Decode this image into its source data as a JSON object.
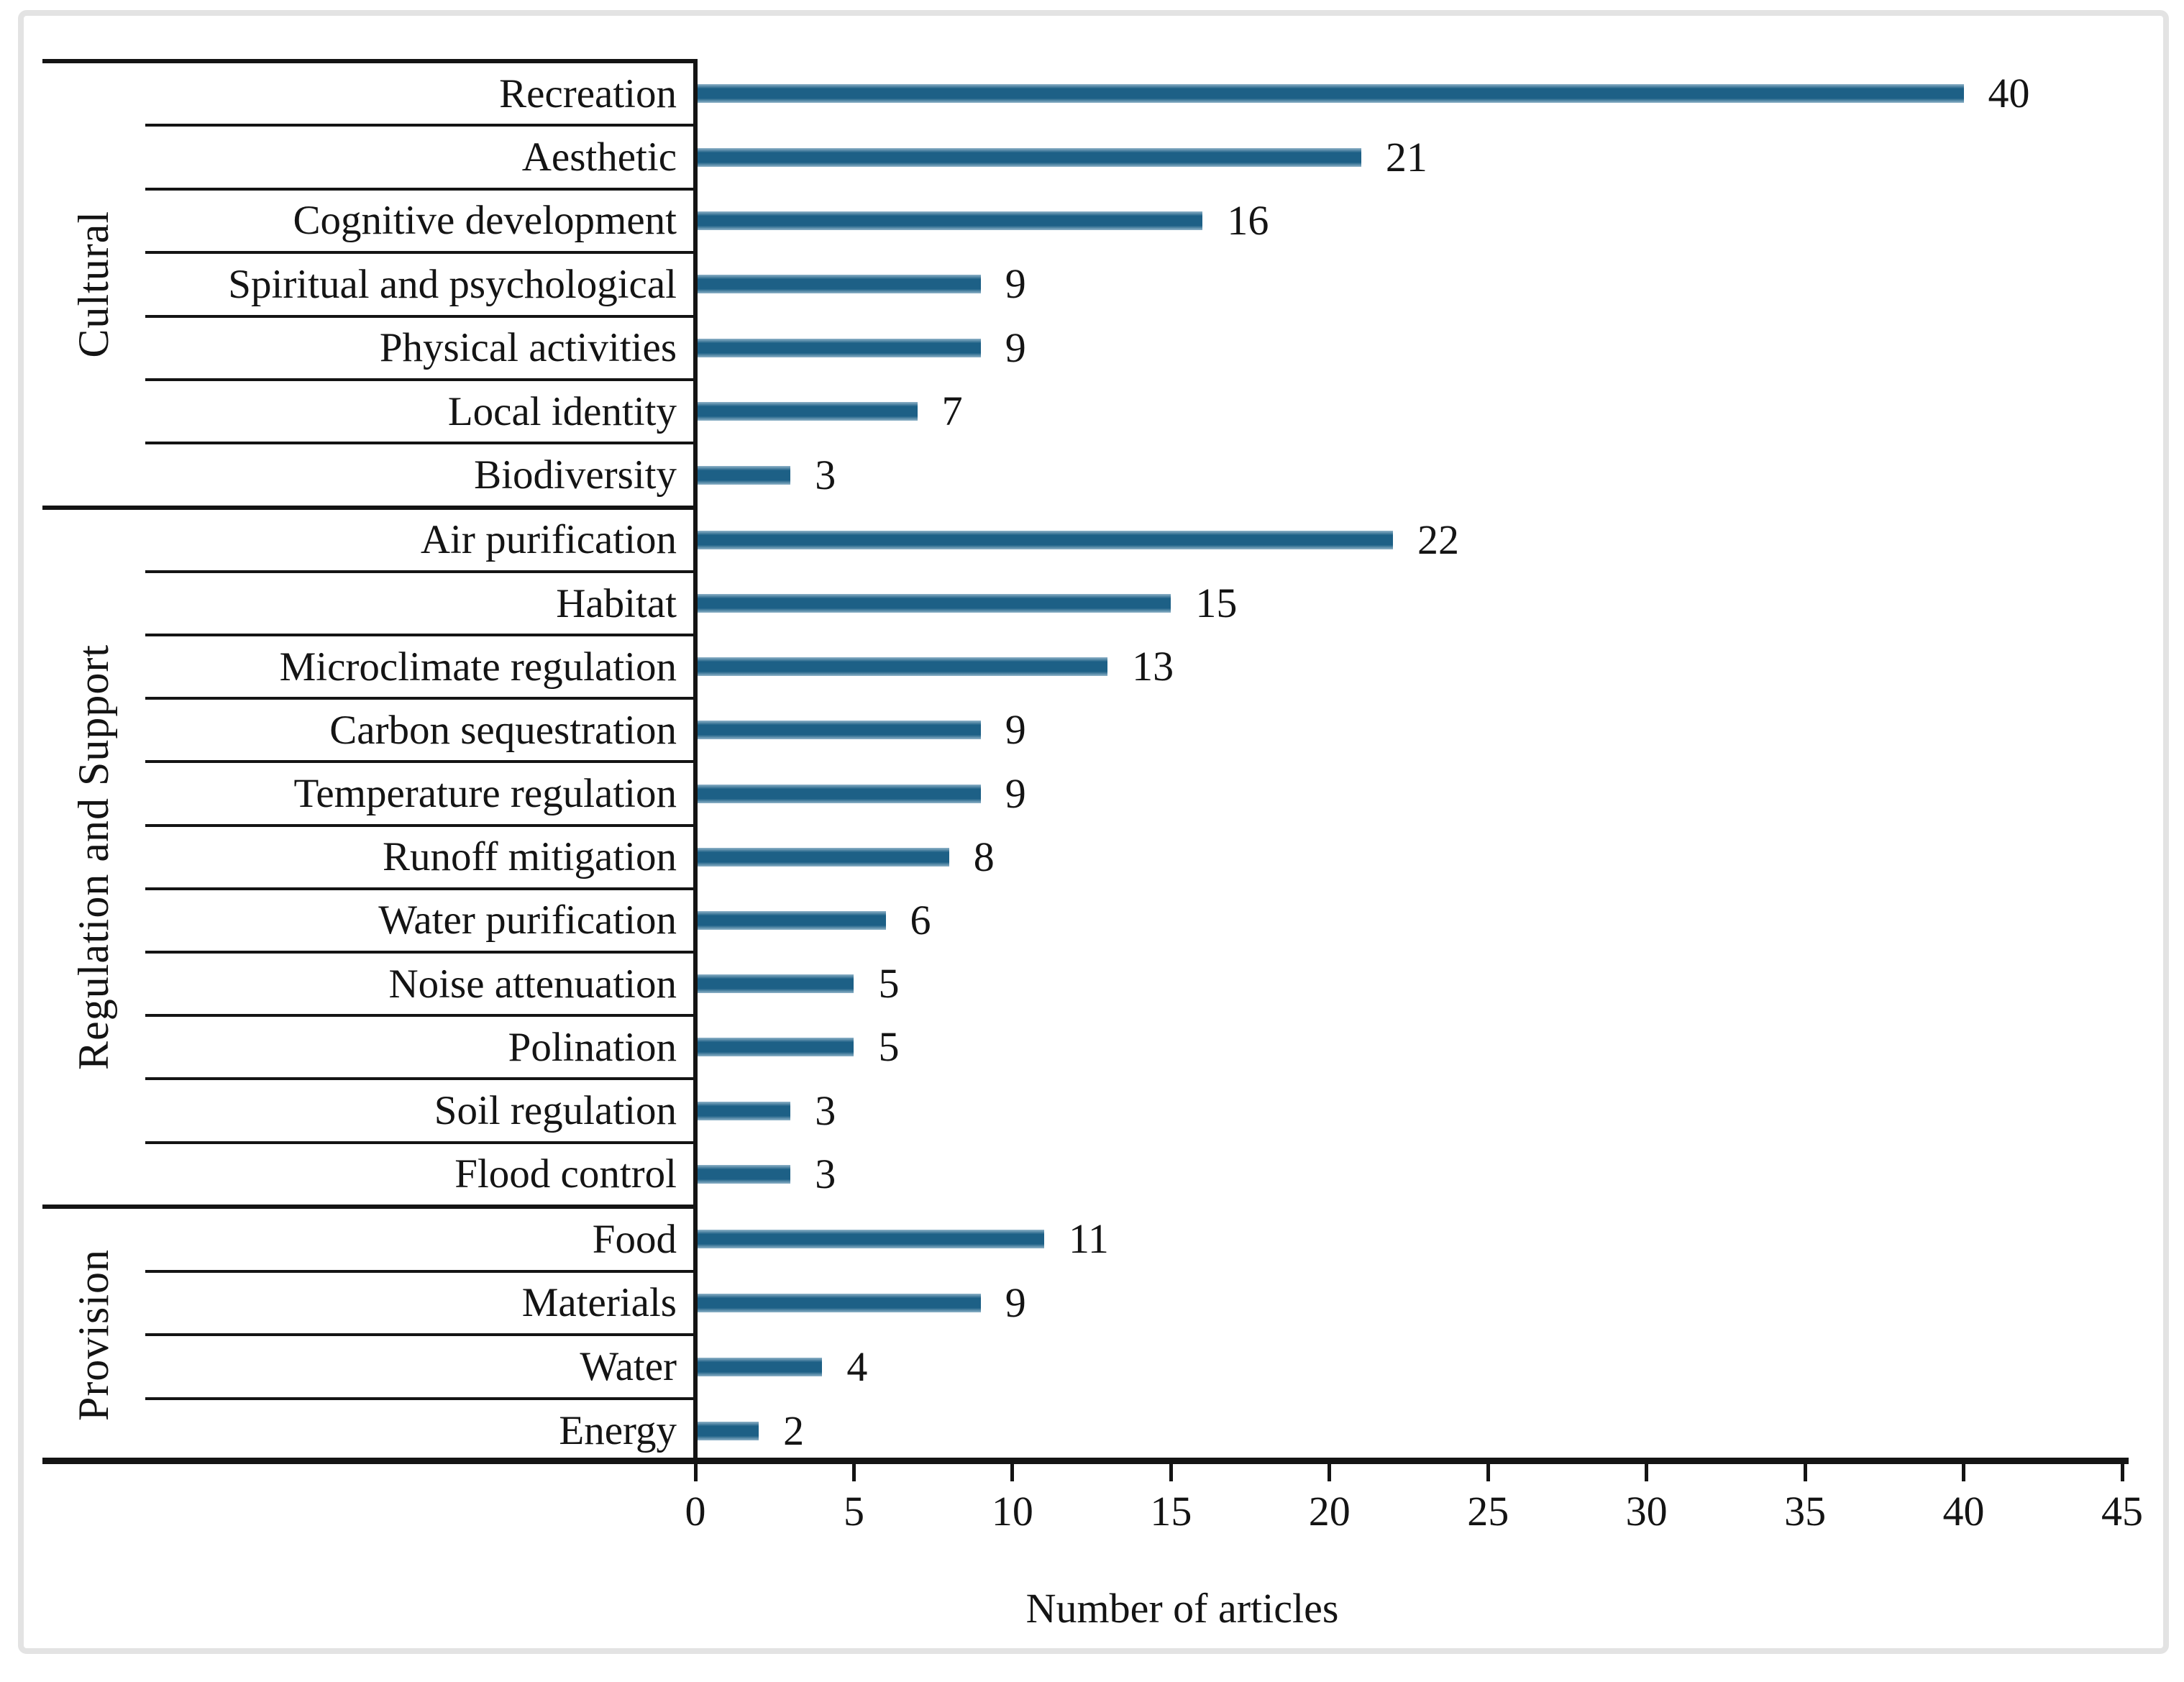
{
  "chart_data": {
    "type": "bar",
    "orientation": "horizontal",
    "title": "",
    "xlabel": "Number of articles",
    "ylabel": "",
    "xlim": [
      0,
      45
    ],
    "xticks": [
      0,
      5,
      10,
      15,
      20,
      25,
      30,
      35,
      40,
      45
    ],
    "grid": false,
    "legend": "none",
    "bar_color": "#1d6086",
    "groups": [
      {
        "name": "Cultural",
        "items": [
          {
            "label": "Recreation",
            "value": 40
          },
          {
            "label": "Aesthetic",
            "value": 21
          },
          {
            "label": "Cognitive development",
            "value": 16
          },
          {
            "label": "Spiritual and psychological",
            "value": 9
          },
          {
            "label": "Physical activities",
            "value": 9
          },
          {
            "label": "Local identity",
            "value": 7
          },
          {
            "label": "Biodiversity",
            "value": 3
          }
        ]
      },
      {
        "name": "Regulation and Support",
        "items": [
          {
            "label": "Air purification",
            "value": 22
          },
          {
            "label": "Habitat",
            "value": 15
          },
          {
            "label": "Microclimate regulation",
            "value": 13
          },
          {
            "label": "Carbon sequestration",
            "value": 9
          },
          {
            "label": "Temperature regulation",
            "value": 9
          },
          {
            "label": "Runoff mitigation",
            "value": 8
          },
          {
            "label": "Water purification",
            "value": 6
          },
          {
            "label": "Noise attenuation",
            "value": 5
          },
          {
            "label": "Polination",
            "value": 5
          },
          {
            "label": "Soil regulation",
            "value": 3
          },
          {
            "label": "Flood control",
            "value": 3
          }
        ]
      },
      {
        "name": "Provision",
        "items": [
          {
            "label": "Food",
            "value": 11
          },
          {
            "label": "Materials",
            "value": 9
          },
          {
            "label": "Water",
            "value": 4
          },
          {
            "label": "Energy",
            "value": 2
          }
        ]
      }
    ]
  }
}
